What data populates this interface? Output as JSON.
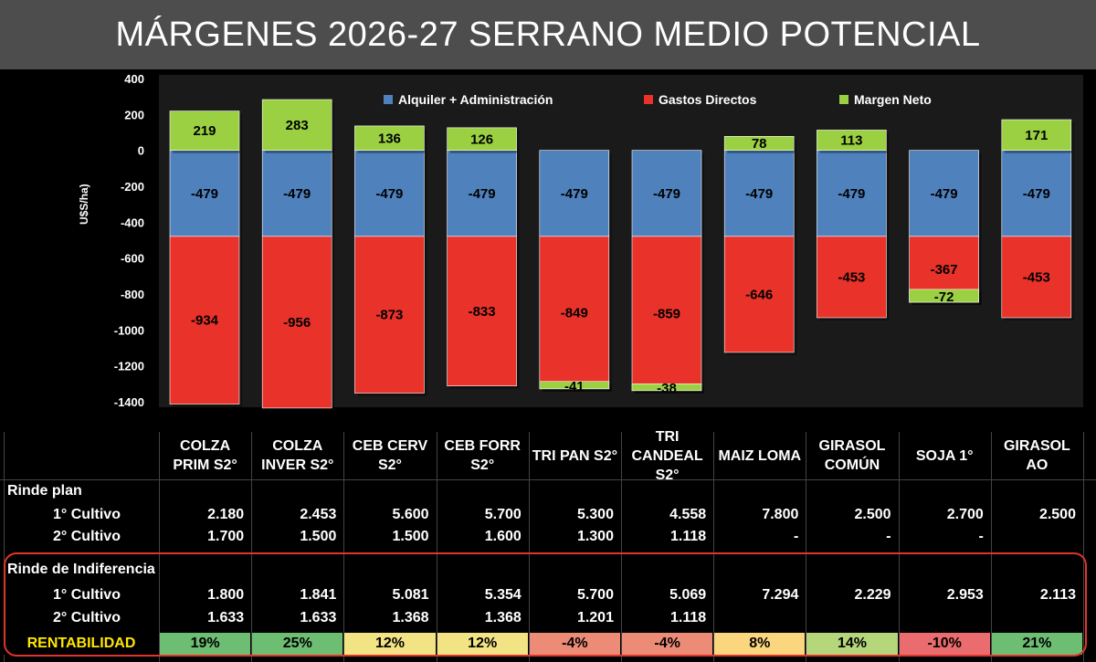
{
  "title": "MÁRGENES 2026-27 SERRANO MEDIO POTENCIAL",
  "chart_data": {
    "type": "bar",
    "stacked": true,
    "ylabel": "U$S/ha)",
    "ylim": [
      -1400,
      400
    ],
    "yticks": [
      400,
      200,
      0,
      -200,
      -400,
      -600,
      -800,
      -1000,
      -1200,
      -1400
    ],
    "legend_position": "top",
    "series": [
      {
        "name": "Alquiler + Administración",
        "color": "#4f81bd",
        "values": [
          -479,
          -479,
          -479,
          -479,
          -479,
          -479,
          -479,
          -479,
          -479,
          -479
        ]
      },
      {
        "name": "Gastos Directos",
        "color": "#e8322a",
        "values": [
          -934,
          -956,
          -873,
          -833,
          -849,
          -859,
          -646,
          -453,
          -367,
          -453
        ]
      },
      {
        "name": "Margen Neto",
        "color": "#9bd042",
        "values": [
          219,
          283,
          136,
          126,
          -41,
          -38,
          78,
          113,
          -72,
          171
        ]
      }
    ]
  },
  "table": {
    "columns": [
      "COLZA\nPRIM S2°",
      "COLZA\nINVER S2°",
      "CEB CERV\nS2°",
      "CEB FORR\nS2°",
      "TRI PAN S2°",
      "TRI CANDEAL\nS2°",
      "MAIZ LOMA",
      "GIRASOL\nCOMÚN",
      "SOJA 1°",
      "GIRASOL\nAO"
    ],
    "rinde_plan_label": "Rinde plan",
    "rinde_indif_label": "Rinde de Indiferencia",
    "cultivo1_label": "1° Cultivo",
    "cultivo2_label": "2° Cultivo",
    "rentabilidad_label": "RENTABILIDAD",
    "rinde_plan_1": [
      "2.180",
      "2.453",
      "5.600",
      "5.700",
      "5.300",
      "4.558",
      "7.800",
      "2.500",
      "2.700",
      "2.500"
    ],
    "rinde_plan_2": [
      "1.700",
      "1.500",
      "1.500",
      "1.600",
      "1.300",
      "1.118",
      "-",
      "-",
      "-",
      ""
    ],
    "indif_1": [
      "1.800",
      "1.841",
      "5.081",
      "5.354",
      "5.700",
      "5.069",
      "7.294",
      "2.229",
      "2.953",
      "2.113"
    ],
    "indif_2": [
      "1.633",
      "1.633",
      "1.368",
      "1.368",
      "1.201",
      "1.118",
      "",
      "",
      "",
      ""
    ],
    "rentabilidad": [
      "19%",
      "25%",
      "12%",
      "12%",
      "-4%",
      "-4%",
      "8%",
      "14%",
      "-10%",
      "21%"
    ],
    "rentabilidad_colors": [
      "#6dbd72",
      "#6dbd72",
      "#f2e384",
      "#f2e384",
      "#ec8c76",
      "#ec8c76",
      "#fbd67f",
      "#b6d67c",
      "#ea6c6e",
      "#6dbd72"
    ],
    "rentabilidad_label_color": "#ffe600"
  }
}
